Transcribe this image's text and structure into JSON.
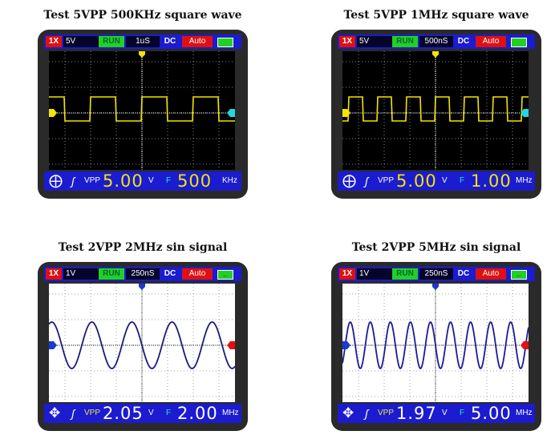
{
  "panels": [
    {
      "title": "Test 5VPP 500KHz square wave",
      "probe": "1X",
      "volts_div": "5V",
      "state": "RUN",
      "time_div": "1uS",
      "coupling": "DC",
      "trigger_mode": "Auto",
      "battery_icon": "battery-full-icon",
      "nav_icon": "crosshair-circle-icon",
      "edge_icon": "rising-edge-icon",
      "vpp_label": "VPP",
      "vpp_value": "5.00",
      "vpp_unit": "V",
      "freq_label": "F",
      "freq_value": "500",
      "freq_unit": "KHz",
      "waveform": "square",
      "theme": "dark",
      "trace_color": "#f2e600"
    },
    {
      "title": "Test 5VPP 1MHz square wave",
      "probe": "1X",
      "volts_div": "5V",
      "state": "RUN",
      "time_div": "500nS",
      "coupling": "DC",
      "trigger_mode": "Auto",
      "battery_icon": "battery-full-icon",
      "nav_icon": "crosshair-circle-icon",
      "edge_icon": "rising-edge-icon",
      "vpp_label": "VPP",
      "vpp_value": "5.00",
      "vpp_unit": "V",
      "freq_label": "F",
      "freq_value": "1.00",
      "freq_unit": "MHz",
      "waveform": "square",
      "theme": "dark",
      "trace_color": "#f2e600"
    },
    {
      "title": "Test 2VPP 2MHz sin signal",
      "probe": "1X",
      "volts_div": "1V",
      "state": "RUN",
      "time_div": "250nS",
      "coupling": "DC",
      "trigger_mode": "Auto",
      "battery_icon": "battery-charging-icon",
      "nav_icon": "move-arrows-icon",
      "edge_icon": "rising-edge-icon",
      "vpp_label": "VPP",
      "vpp_value": "2.05",
      "vpp_unit": "V",
      "freq_label": "F",
      "freq_value": "2.00",
      "freq_unit": "MHz",
      "waveform": "sine",
      "theme": "light",
      "trace_color": "#1a1a7a"
    },
    {
      "title": "Test 2VPP 5MHz sin signal",
      "probe": "1X",
      "volts_div": "1V",
      "state": "RUN",
      "time_div": "250nS",
      "coupling": "DC",
      "trigger_mode": "Auto",
      "battery_icon": "battery-charging-icon",
      "nav_icon": "move-arrows-icon",
      "edge_icon": "rising-edge-icon",
      "vpp_label": "VPP",
      "vpp_value": "1.97",
      "vpp_unit": "V",
      "freq_label": "F",
      "freq_value": "5.00",
      "freq_unit": "MHz",
      "waveform": "sine",
      "theme": "light",
      "trace_color": "#1a1a9a"
    }
  ]
}
